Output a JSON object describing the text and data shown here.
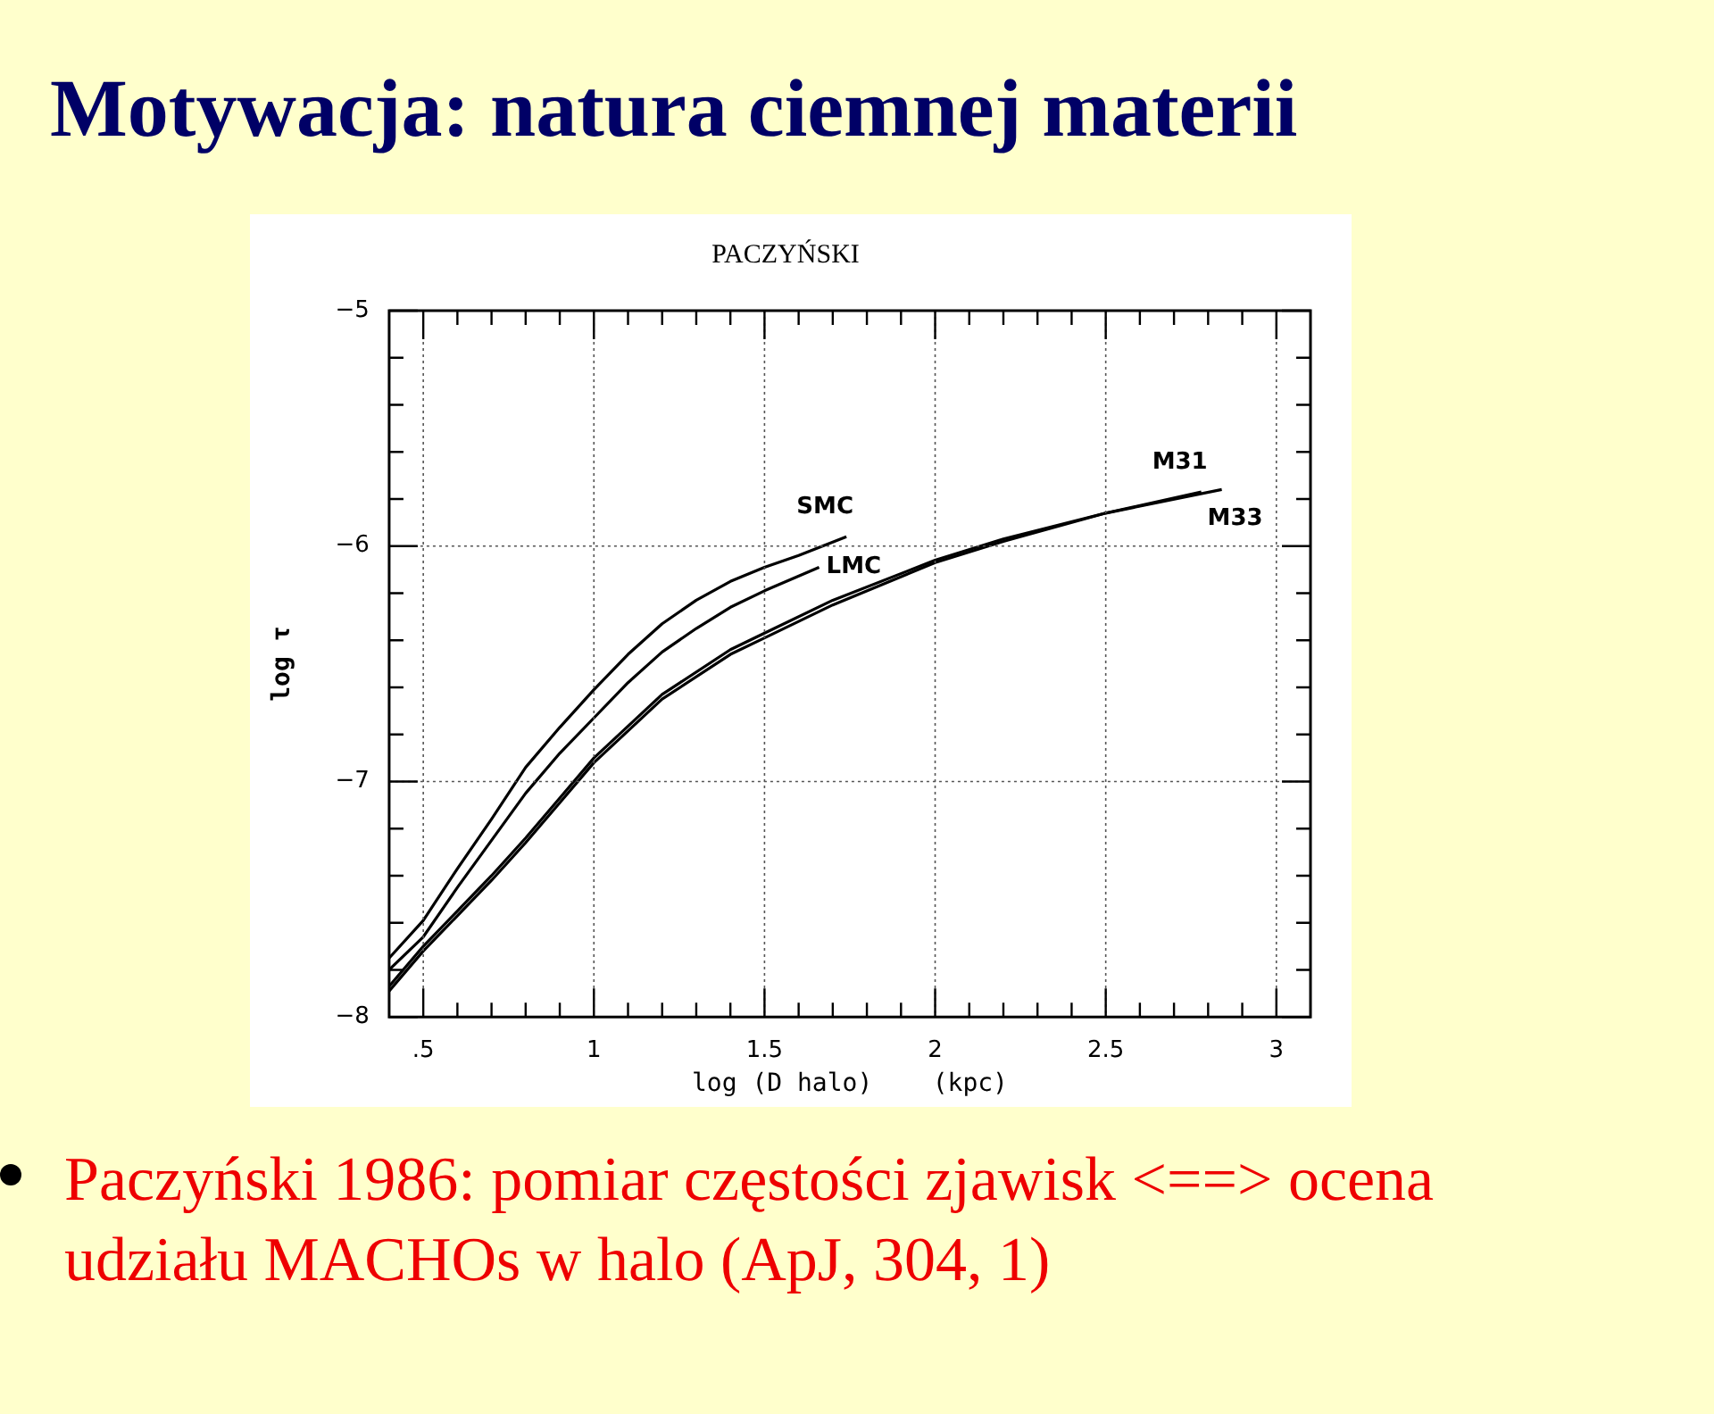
{
  "chart_data": {
    "type": "line",
    "title": "Motywacja: natura ciemnej materii",
    "subtitle": "PACZYŃSKI",
    "xlabel": "log (D halo)    (kpc)",
    "ylabel": "log τ",
    "annotations": [
      "Paczyński 1986: pomiar częstości zjawisk <==> ocena udziału MACHOs w halo (ApJ, 304, 1)"
    ],
    "xlim": [
      0.4,
      3.1
    ],
    "ylim": [
      -8,
      -5
    ],
    "xticks": [
      {
        "value": 0.5,
        "label": ".5"
      },
      {
        "value": 0.6,
        "label": null
      },
      {
        "value": 0.7,
        "label": null
      },
      {
        "value": 0.8,
        "label": null
      },
      {
        "value": 0.9,
        "label": null
      },
      1,
      {
        "value": 1.1,
        "label": null
      },
      {
        "value": 1.2,
        "label": null
      },
      {
        "value": 1.3,
        "label": null
      },
      {
        "value": 1.4,
        "label": null
      },
      1.5,
      {
        "value": 1.6,
        "label": null
      },
      {
        "value": 1.7,
        "label": null
      },
      {
        "value": 1.8,
        "label": null
      },
      {
        "value": 1.9,
        "label": null
      },
      2,
      {
        "value": 2.1,
        "label": null
      },
      {
        "value": 2.2,
        "label": null
      },
      {
        "value": 2.3,
        "label": null
      },
      {
        "value": 2.4,
        "label": null
      },
      2.5,
      {
        "value": 2.6,
        "label": null
      },
      {
        "value": 2.7,
        "label": null
      },
      {
        "value": 2.8,
        "label": null
      },
      {
        "value": 2.9,
        "label": null
      },
      3
    ],
    "yticks": [
      -8,
      {
        "value": -7.8,
        "label": null
      },
      {
        "value": -7.6,
        "label": null
      },
      {
        "value": -7.4,
        "label": null
      },
      {
        "value": -7.2,
        "label": null
      },
      -7,
      {
        "value": -6.8,
        "label": null
      },
      {
        "value": -6.6,
        "label": null
      },
      {
        "value": -6.4,
        "label": null
      },
      {
        "value": -6.2,
        "label": null
      },
      -6,
      {
        "value": -5.8,
        "label": null
      },
      {
        "value": -5.6,
        "label": null
      },
      {
        "value": -5.4,
        "label": null
      },
      {
        "value": -5.2,
        "label": null
      },
      -5
    ],
    "grid": true,
    "legend": false,
    "marker": "none",
    "line_style": "solid",
    "series": [
      {
        "name": "SMC",
        "color": "#000000",
        "x": [
          0.4,
          0.5,
          0.6,
          0.7,
          0.8,
          0.9,
          1.0,
          1.1,
          1.2,
          1.3,
          1.4,
          1.5,
          1.6,
          1.74
        ],
        "values": [
          -7.75,
          -7.59,
          -7.37,
          -7.16,
          -6.94,
          -6.77,
          -6.61,
          -6.46,
          -6.33,
          -6.23,
          -6.15,
          -6.09,
          -6.04,
          -5.96
        ]
      },
      {
        "name": "LMC",
        "color": "#000000",
        "x": [
          0.4,
          0.5,
          0.6,
          0.7,
          0.8,
          0.9,
          1.0,
          1.1,
          1.2,
          1.3,
          1.4,
          1.5,
          1.66
        ],
        "values": [
          -7.8,
          -7.66,
          -7.45,
          -7.25,
          -7.05,
          -6.88,
          -6.73,
          -6.58,
          -6.45,
          -6.35,
          -6.26,
          -6.19,
          -6.09
        ]
      },
      {
        "name": "M31",
        "color": "#000000",
        "x": [
          0.4,
          0.5,
          0.6,
          0.7,
          0.8,
          0.9,
          1.0,
          1.2,
          1.4,
          1.5,
          1.7,
          2.0,
          2.2,
          2.5,
          2.78
        ],
        "values": [
          -7.87,
          -7.7,
          -7.55,
          -7.4,
          -7.24,
          -7.07,
          -6.9,
          -6.63,
          -6.44,
          -6.37,
          -6.23,
          -6.06,
          -5.97,
          -5.86,
          -5.77
        ]
      },
      {
        "name": "M33",
        "color": "#000000",
        "x": [
          0.4,
          0.5,
          0.6,
          0.7,
          0.8,
          0.9,
          1.0,
          1.2,
          1.4,
          1.5,
          1.7,
          2.0,
          2.2,
          2.5,
          2.84
        ],
        "values": [
          -7.89,
          -7.72,
          -7.57,
          -7.42,
          -7.26,
          -7.09,
          -6.92,
          -6.65,
          -6.46,
          -6.39,
          -6.25,
          -6.07,
          -5.98,
          -5.86,
          -5.76
        ]
      }
    ]
  }
}
